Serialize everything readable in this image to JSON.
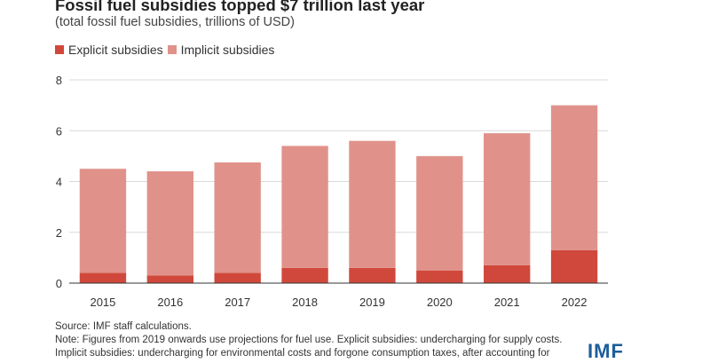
{
  "title": "Fossil fuel subsidies topped $7 trillion last year",
  "subtitle": "(total fossil fuel subsidies, trillions of USD)",
  "legend": {
    "explicit": "Explicit subsidies",
    "implicit": "Implicit subsidies"
  },
  "colors": {
    "explicit": "#d0483b",
    "implicit": "#e0928a",
    "gridline": "#d9d9d9",
    "axis": "#333333",
    "logo": "#1b5e9a"
  },
  "notes": {
    "source": "Source: IMF staff calculations.",
    "note": "Note: Figures from 2019 onwards use projections for fuel use. Explicit subsidies: undercharging for supply costs.",
    "note2": "Implicit subsidies: undercharging for environmental costs and forgone consumption taxes, after accounting for"
  },
  "logo": "IMF",
  "chart_data": {
    "type": "bar",
    "stacked": true,
    "categories": [
      "2015",
      "2016",
      "2017",
      "2018",
      "2019",
      "2020",
      "2021",
      "2022"
    ],
    "series": [
      {
        "name": "Explicit subsidies",
        "values": [
          0.4,
          0.3,
          0.4,
          0.6,
          0.6,
          0.5,
          0.7,
          1.3
        ]
      },
      {
        "name": "Implicit subsidies",
        "values": [
          4.1,
          4.1,
          4.35,
          4.8,
          5.0,
          4.5,
          5.2,
          5.7
        ]
      }
    ],
    "ylim": [
      0,
      8
    ],
    "yticks": [
      0,
      2,
      4,
      6,
      8
    ],
    "grid": true,
    "legend_position": "top-left"
  }
}
